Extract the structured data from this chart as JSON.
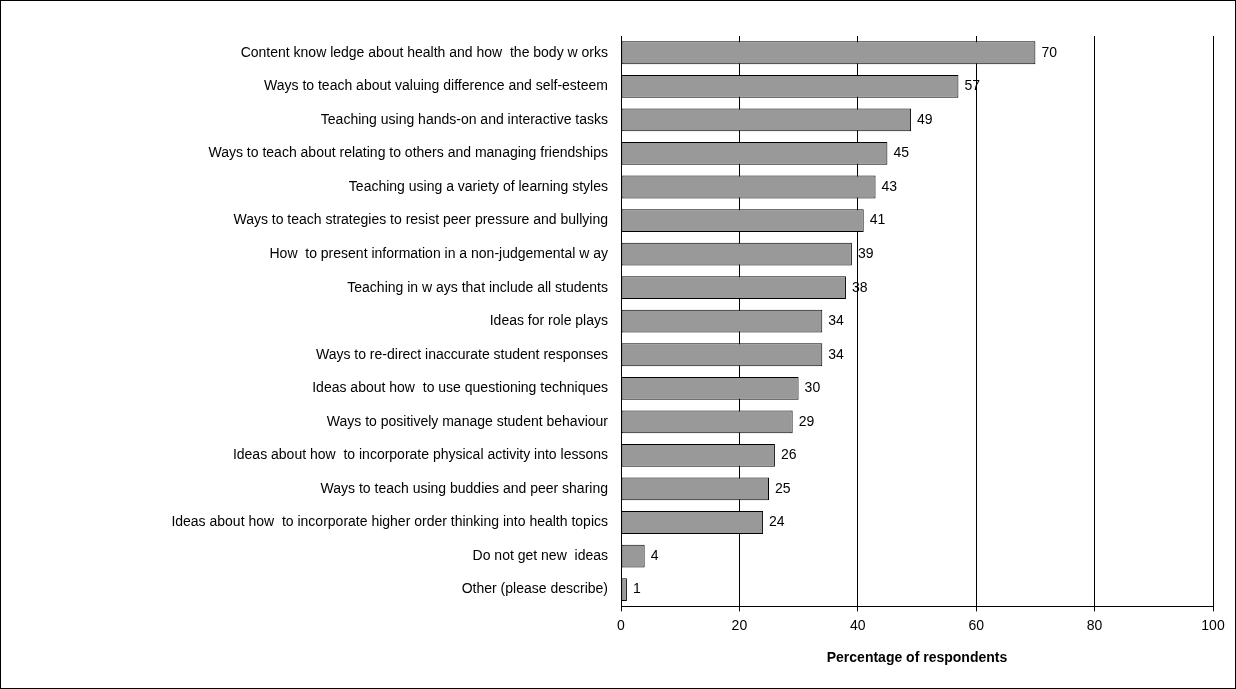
{
  "chart_data": {
    "type": "bar",
    "orientation": "horizontal",
    "xlabel": "Percentage of respondents",
    "categories": [
      "Content know ledge about health and how  the body w orks",
      "Ways to teach about valuing difference and self-esteem",
      "Teaching using hands-on and interactive tasks",
      "Ways to teach about relating to others and managing friendships",
      "Teaching using a variety of learning styles",
      "Ways to teach strategies to resist peer pressure and bullying",
      "How  to present information in a non-judgemental w ay",
      "Teaching in w ays that include all students",
      "Ideas for role plays",
      "Ways to re-direct inaccurate student responses",
      "Ideas about how  to use questioning techniques",
      "Ways to positively manage student behaviour",
      "Ideas about how  to incorporate physical activity into lessons",
      "Ways to teach using buddies and peer sharing",
      "Ideas about how  to incorporate higher order thinking into health topics",
      "Do not get new  ideas",
      "Other (please describe)"
    ],
    "values": [
      70,
      57,
      49,
      45,
      43,
      41,
      39,
      38,
      34,
      34,
      30,
      29,
      26,
      25,
      24,
      4,
      1
    ],
    "color": "#999999",
    "xlim": [
      0,
      100
    ],
    "xticks": [
      0,
      20,
      40,
      60,
      80,
      100
    ],
    "grid": "x",
    "legend": false,
    "data_labels": true
  }
}
